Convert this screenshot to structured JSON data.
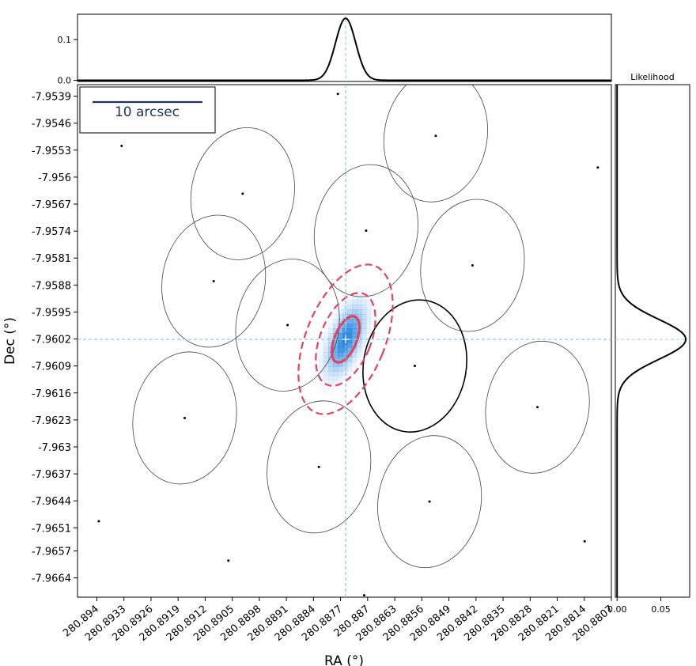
{
  "chart_data": {
    "type": "scatter",
    "xlabel": "RA (°)",
    "ylabel": "Dec (°)",
    "xlim": [
      280.8945,
      280.8807
    ],
    "ylim": [
      -7.9669,
      -7.9536
    ],
    "x_ticks": [
      "280.894",
      "280.8933",
      "280.8926",
      "280.8919",
      "280.8912",
      "280.8905",
      "280.8898",
      "280.8891",
      "280.8884",
      "280.8877",
      "280.887",
      "280.8863",
      "280.8856",
      "280.8849",
      "280.8842",
      "280.8835",
      "280.8828",
      "280.8821",
      "280.8814",
      "280.8807"
    ],
    "y_ticks": [
      "-7.9539",
      "-7.9546",
      "-7.9553",
      "-7.956",
      "-7.9567",
      "-7.9574",
      "-7.9581",
      "-7.9588",
      "-7.9595",
      "-7.9602",
      "-7.9609",
      "-7.9616",
      "-7.9623",
      "-7.963",
      "-7.9637",
      "-7.9644",
      "-7.9651",
      "-7.9657",
      "-7.9664"
    ],
    "scale_bar": {
      "label": "10 arcsec",
      "arcsec": 10
    },
    "best_fit": {
      "ra": 280.88757,
      "dec": -7.96021
    },
    "sources": [
      {
        "ra": 280.88777,
        "dec": -7.95384
      },
      {
        "ra": 280.88524,
        "dec": -7.95493
      },
      {
        "ra": 280.89336,
        "dec": -7.95519
      },
      {
        "ra": 280.88105,
        "dec": -7.95575
      },
      {
        "ra": 280.89023,
        "dec": -7.95643
      },
      {
        "ra": 280.88704,
        "dec": -7.95739
      },
      {
        "ra": 280.89098,
        "dec": -7.9587
      },
      {
        "ra": 280.88429,
        "dec": -7.95829
      },
      {
        "ra": 280.88907,
        "dec": -7.95984
      },
      {
        "ra": 280.88578,
        "dec": -7.9609
      },
      {
        "ra": 280.88261,
        "dec": -7.96197
      },
      {
        "ra": 280.89173,
        "dec": -7.96225
      },
      {
        "ra": 280.88826,
        "dec": -7.96352
      },
      {
        "ra": 280.8854,
        "dec": -7.96442
      },
      {
        "ra": 280.89395,
        "dec": -7.96493
      },
      {
        "ra": 280.88139,
        "dec": -7.96545
      },
      {
        "ra": 280.8906,
        "dec": -7.96595
      },
      {
        "ra": 280.88709,
        "dec": -7.96685
      }
    ],
    "footprints": [
      {
        "ra": 280.88524,
        "dec": -7.95493,
        "highlight": false,
        "partial": true
      },
      {
        "ra": 280.89023,
        "dec": -7.95643,
        "highlight": false
      },
      {
        "ra": 280.88704,
        "dec": -7.95739,
        "highlight": false
      },
      {
        "ra": 280.89098,
        "dec": -7.9587,
        "highlight": false
      },
      {
        "ra": 280.88429,
        "dec": -7.95829,
        "highlight": false
      },
      {
        "ra": 280.88907,
        "dec": -7.95984,
        "highlight": false
      },
      {
        "ra": 280.88578,
        "dec": -7.9609,
        "highlight": true
      },
      {
        "ra": 280.88261,
        "dec": -7.96197,
        "highlight": false
      },
      {
        "ra": 280.89173,
        "dec": -7.96225,
        "highlight": false
      },
      {
        "ra": 280.88826,
        "dec": -7.96352,
        "highlight": false
      },
      {
        "ra": 280.8854,
        "dec": -7.96442,
        "highlight": false
      }
    ],
    "confidence_contours": [
      {
        "level": 1,
        "style": "solid"
      },
      {
        "level": 2,
        "style": "dashed"
      },
      {
        "level": 3,
        "style": "dashed"
      }
    ],
    "top_marginal": {
      "y_ticks": [
        "0.0",
        "0.1"
      ],
      "ylim": [
        -0.003,
        0.162
      ],
      "peak": 0.152,
      "center_ra": 280.88757,
      "sigma_ra": 0.00026
    },
    "right_marginal": {
      "title": "Likelihood",
      "x_ticks": [
        "0.00",
        "0.05"
      ],
      "xlim": [
        -0.002,
        0.083
      ],
      "peak": 0.0785,
      "center_dec": -7.96021,
      "sigma_dec": 0.00052
    },
    "colors": {
      "contour": "#e0445e",
      "crosshair": "#87c3e6",
      "heat": "#1b7fe0",
      "axis": "#000000"
    }
  }
}
